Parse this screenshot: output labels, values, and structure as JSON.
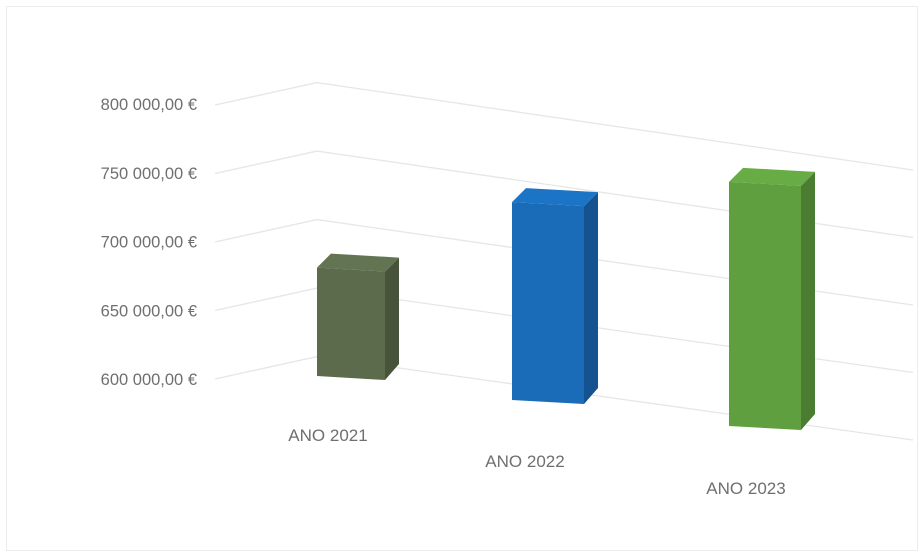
{
  "chart_data": {
    "type": "bar",
    "title": "",
    "xlabel": "",
    "ylabel": "",
    "categories": [
      "ANO 2021",
      "ANO 2022",
      "ANO 2023"
    ],
    "values": [
      680000,
      745000,
      775000
    ],
    "ylim": [
      600000,
      800000
    ],
    "yticks": [
      "600 000,00 €",
      "650 000,00 €",
      "700 000,00 €",
      "750 000,00 €",
      "800 000,00 €"
    ],
    "ytick_values": [
      600000,
      650000,
      700000,
      750000,
      800000
    ],
    "colors": [
      "#5b6b4b",
      "#1a6bb8",
      "#5f9f3f"
    ],
    "grid": true,
    "legend": "none",
    "style": "3d-column"
  }
}
